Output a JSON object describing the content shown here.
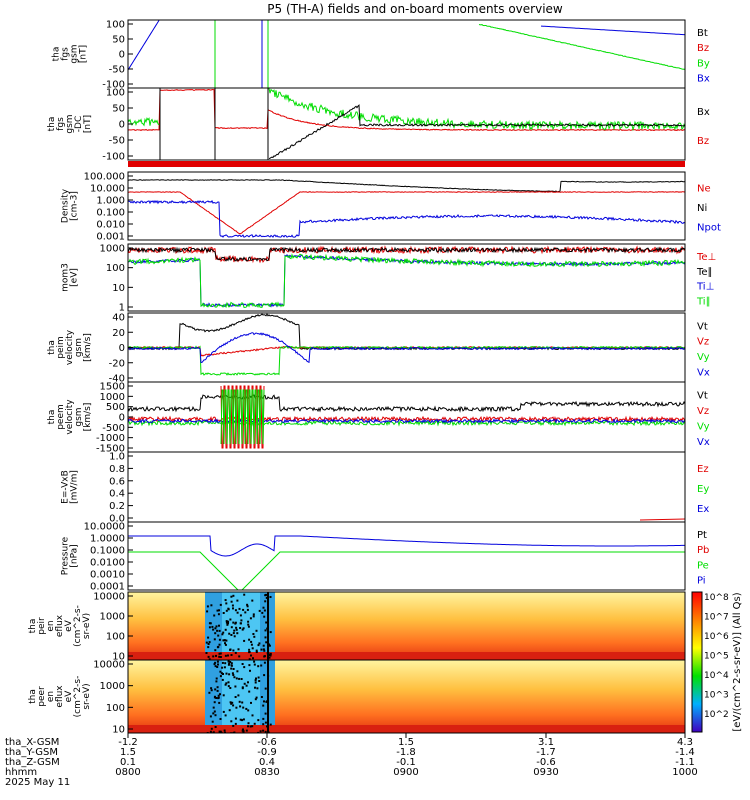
{
  "title": "P5 (TH-A) fields and on-board moments overview",
  "colors": {
    "black": "#000000",
    "red": "#e00000",
    "green": "#00dd00",
    "blue": "#0000dd"
  },
  "chart_data": {
    "type": "line",
    "panels": [
      {
        "id": "fgs-gsm",
        "ylabel_lines": [
          "tha",
          "fgs",
          "gsm",
          "[nT]"
        ],
        "ylim": [
          -100,
          100
        ],
        "ytick_labels": [
          "100",
          "50",
          "0",
          "-50",
          "-100"
        ],
        "legend": [
          {
            "text": "Bt",
            "color": "black"
          },
          {
            "text": "Bz",
            "color": "red"
          },
          {
            "text": "By",
            "color": "green"
          },
          {
            "text": "Bx",
            "color": "blue"
          }
        ]
      },
      {
        "id": "fgs-gsm-dc",
        "ylabel_lines": [
          "tha",
          "fgs",
          "gsm",
          "-DC",
          "[nT]"
        ],
        "ylim": [
          -125,
          125
        ],
        "ytick_labels": [
          "100",
          "50",
          "0",
          "-50",
          "-100"
        ],
        "legend": [
          {
            "text": "Bx",
            "color": "black"
          },
          {
            "text": "Bz",
            "color": "red"
          }
        ]
      },
      {
        "id": "density",
        "ylabel_lines": [
          "Density",
          "[cm-3]"
        ],
        "scale": "log",
        "ytick_labels": [
          "100.000",
          "10.000",
          "1.000",
          "0.100",
          "0.010",
          "0.001"
        ],
        "legend": [
          {
            "text": "Ne",
            "color": "red"
          },
          {
            "text": "Ni",
            "color": "black"
          },
          {
            "text": "Npot",
            "color": "blue"
          }
        ]
      },
      {
        "id": "temperature",
        "ylabel_lines": [
          "mom3",
          "[eV]"
        ],
        "scale": "log",
        "ytick_labels": [
          "1000",
          "100",
          "10",
          "1"
        ],
        "legend": [
          {
            "text": "Te⊥",
            "color": "red"
          },
          {
            "text": "Te∥",
            "color": "black"
          },
          {
            "text": "Ti⊥",
            "color": "blue"
          },
          {
            "text": "Ti∥",
            "color": "green"
          }
        ]
      },
      {
        "id": "peim-velocity",
        "ylabel_lines": [
          "tha",
          "peim",
          "velocity",
          "gsm",
          "[km/s]"
        ],
        "ylim": [
          -40,
          50
        ],
        "ytick_labels": [
          "40",
          "20",
          "0",
          "-20",
          "-40"
        ],
        "legend": [
          {
            "text": "Vt",
            "color": "black"
          },
          {
            "text": "Vz",
            "color": "red"
          },
          {
            "text": "Vy",
            "color": "green"
          },
          {
            "text": "Vx",
            "color": "blue"
          }
        ]
      },
      {
        "id": "peem-velocity",
        "ylabel_lines": [
          "tha",
          "peem",
          "velocity",
          "gsm",
          "[km/s]"
        ],
        "ylim": [
          -1500,
          1500
        ],
        "ytick_labels": [
          "1500",
          "1000",
          "500",
          "0",
          "-500",
          "-1000",
          "-1500"
        ],
        "legend": [
          {
            "text": "Vt",
            "color": "black"
          },
          {
            "text": "Vz",
            "color": "red"
          },
          {
            "text": "Vy",
            "color": "green"
          },
          {
            "text": "Vx",
            "color": "blue"
          }
        ]
      },
      {
        "id": "efield",
        "ylabel_lines": [
          "E=-VxB",
          "[mV/m]"
        ],
        "ylim": [
          0,
          1
        ],
        "ytick_labels": [
          "1.0",
          "0.8",
          "0.6",
          "0.4",
          "0.2",
          "0.0"
        ],
        "legend": [
          {
            "text": "Ez",
            "color": "red"
          },
          {
            "text": "Ey",
            "color": "green"
          },
          {
            "text": "Ex",
            "color": "blue"
          }
        ]
      },
      {
        "id": "pressure",
        "ylabel_lines": [
          "Pressure",
          "[nPa]"
        ],
        "scale": "log",
        "ytick_labels": [
          "10.0000",
          "1.0000",
          "0.1000",
          "0.0100",
          "0.0010",
          "0.0001"
        ],
        "legend": [
          {
            "text": "Pt",
            "color": "black"
          },
          {
            "text": "Pb",
            "color": "red"
          },
          {
            "text": "Pe",
            "color": "green"
          },
          {
            "text": "Pi",
            "color": "blue"
          }
        ]
      },
      {
        "id": "peir-spectrogram",
        "ylabel_lines": [
          "tha",
          "peir",
          "en",
          "eflux",
          "eV",
          "(cm^2-s-",
          "sr-eV)"
        ],
        "scale": "log",
        "ytick_labels": [
          "10000",
          "1000",
          "100",
          "10"
        ]
      },
      {
        "id": "peer-spectrogram",
        "ylabel_lines": [
          "tha",
          "peer",
          "en",
          "eflux",
          "eV",
          "(cm^2-s-",
          "sr-eV)"
        ],
        "scale": "log",
        "ytick_labels": [
          "10000",
          "1000",
          "100",
          "10"
        ]
      }
    ],
    "colorbar": {
      "label": "[eV/(cm^2-s-sr-eV)] (All Qs)",
      "tick_labels": [
        "10^8",
        "10^7",
        "10^6",
        "10^5",
        "10^4",
        "10^3",
        "10^2"
      ]
    },
    "x_axis": {
      "rows": [
        {
          "label": "tha_X-GSM",
          "values": [
            "-1.2",
            "-0.6",
            "1.5",
            "3.1",
            "4.3"
          ]
        },
        {
          "label": "tha_Y-GSM",
          "values": [
            "1.5",
            "-0.9",
            "-1.8",
            "-1.7",
            "-1.4"
          ]
        },
        {
          "label": "tha_Z-GSM",
          "values": [
            "0.1",
            "0.4",
            "-0.1",
            "-0.6",
            "-1.1"
          ]
        },
        {
          "label": "hhmm",
          "values": [
            "0800",
            "0830",
            "0900",
            "0930",
            "1000"
          ]
        }
      ],
      "date": "2025 May 11"
    }
  }
}
